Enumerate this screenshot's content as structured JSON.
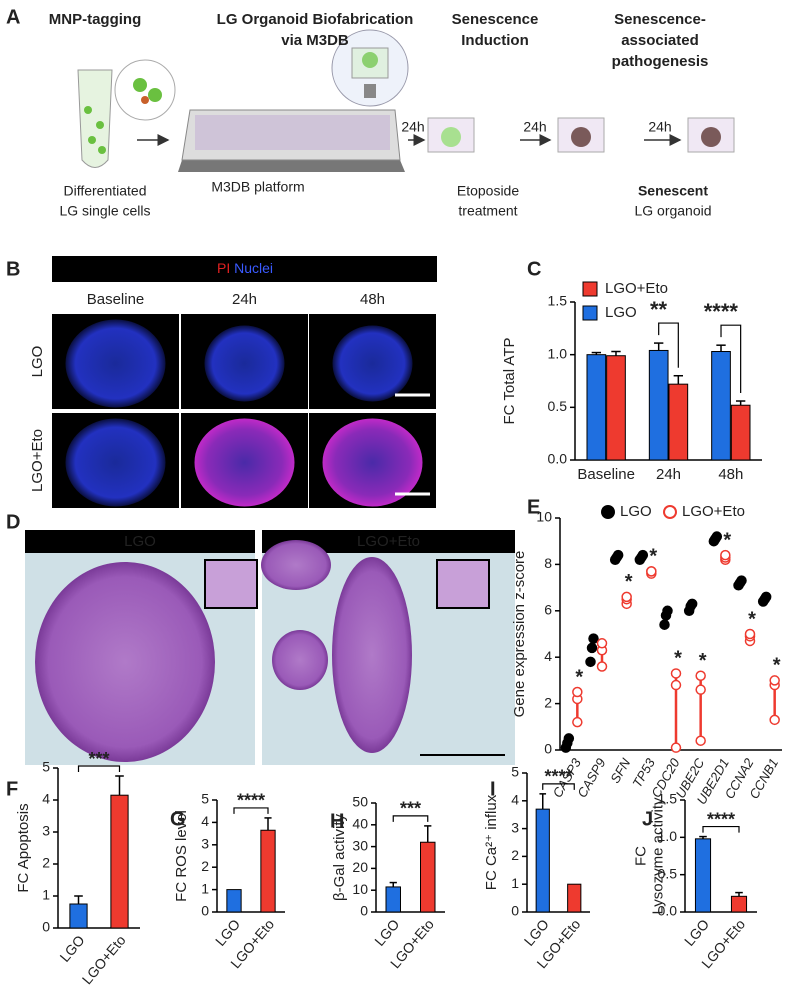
{
  "diagram": {
    "panel": "A",
    "steps": [
      {
        "title": [
          "MNP-tagging"
        ],
        "caption": [
          "Differentiated",
          "LG single cells"
        ]
      },
      {
        "title": [
          "LG Organoid Biofabrication",
          "via M3DB"
        ],
        "caption": [
          "M3DB platform"
        ]
      },
      {
        "title": [
          "Senescence",
          "Induction"
        ],
        "caption": [
          "Etoposide",
          "treatment"
        ]
      },
      {
        "title": [
          "Senescence-",
          "associated",
          "pathogenesis"
        ],
        "caption": [
          "Senescent",
          "LG organoid"
        ]
      }
    ],
    "arrow_labels": [
      "24h",
      "24h",
      "24h"
    ]
  },
  "images_b": {
    "panel": "B",
    "header": [
      "PI",
      "Nuclei"
    ],
    "columns": [
      "Baseline",
      "24h",
      "48h"
    ],
    "rows": [
      "LGO",
      "LGO+Eto"
    ]
  },
  "images_d": {
    "panel": "D",
    "columns": [
      "LGO",
      "LGO+Eto"
    ]
  },
  "chart_data": [
    {
      "type": "grouped_bar",
      "panel": "C",
      "ylabel": "FC Total ATP",
      "categories": [
        "Baseline",
        "24h",
        "48h"
      ],
      "series": [
        {
          "name": "LGO",
          "color": "#1f6fe0",
          "values": [
            1.0,
            1.04,
            1.03
          ],
          "errors": [
            0.02,
            0.07,
            0.06
          ]
        },
        {
          "name": "LGO+Eto",
          "color": "#ee3a2f",
          "values": [
            0.99,
            0.72,
            0.52
          ],
          "errors": [
            0.04,
            0.08,
            0.04
          ]
        }
      ],
      "significance": [
        null,
        "**",
        "****"
      ],
      "ylim": [
        0,
        1.5
      ],
      "yticks": [
        {
          "value": 0,
          "label": "0.0"
        },
        {
          "value": 0.5,
          "label": "0.5"
        },
        {
          "value": 1,
          "label": "1.0"
        },
        {
          "value": 1.5,
          "label": "1.5"
        }
      ]
    },
    {
      "type": "dot_range",
      "panel": "E",
      "ylabel": "Gene expression z-score",
      "categories": [
        "CASP3",
        "CASP9",
        "SFN",
        "TP53",
        "CDC20",
        "UBE2C",
        "UBE2D1",
        "CCNA2",
        "CCNB1"
      ],
      "series": [
        {
          "name": "LGO",
          "color": "#000000",
          "values": [
            [
              0.1,
              0.3,
              0.5
            ],
            [
              3.8,
              4.4,
              4.8
            ],
            [
              8.2,
              8.3,
              8.4
            ],
            [
              8.2,
              8.3,
              8.4
            ],
            [
              5.4,
              5.8,
              6.0
            ],
            [
              6.0,
              6.2,
              6.3
            ],
            [
              9.0,
              9.1,
              9.2
            ],
            [
              7.1,
              7.2,
              7.3
            ],
            [
              6.4,
              6.5,
              6.6
            ]
          ]
        },
        {
          "name": "LGO+Eto",
          "color": "#ee3a2f",
          "values": [
            [
              1.2,
              2.2,
              2.5
            ],
            [
              3.6,
              4.3,
              4.6
            ],
            [
              6.3,
              6.5,
              6.6
            ],
            [
              7.6,
              7.7,
              7.7
            ],
            [
              0.1,
              2.8,
              3.3
            ],
            [
              0.4,
              2.6,
              3.2
            ],
            [
              8.2,
              8.3,
              8.4
            ],
            [
              4.7,
              4.9,
              5.0
            ],
            [
              1.3,
              2.8,
              3.0
            ]
          ]
        }
      ],
      "significance": [
        "*",
        null,
        "*",
        "*",
        "*",
        "*",
        "*",
        "*",
        "*"
      ],
      "ylim": [
        0,
        10
      ],
      "yticks": [
        0,
        2,
        4,
        6,
        8,
        10
      ]
    },
    {
      "type": "bar",
      "panel": "F",
      "ylabel": "FC Apoptosis",
      "categories": [
        "LGO",
        "LGO+Eto"
      ],
      "values": [
        0.75,
        4.15
      ],
      "errors": [
        0.25,
        0.6
      ],
      "colors": [
        "#1f6fe0",
        "#ee3a2f"
      ],
      "significance": "***",
      "ylim": [
        0,
        5
      ],
      "yticks": [
        0,
        1,
        2,
        3,
        4,
        5
      ]
    },
    {
      "type": "bar",
      "panel": "G",
      "ylabel": "FC ROS level",
      "categories": [
        "LGO",
        "LGO+Eto"
      ],
      "values": [
        1.0,
        3.65
      ],
      "errors": [
        0,
        0.55
      ],
      "colors": [
        "#1f6fe0",
        "#ee3a2f"
      ],
      "significance": "****",
      "ylim": [
        0,
        5
      ],
      "yticks": [
        0,
        1,
        2,
        3,
        4,
        5
      ]
    },
    {
      "type": "bar",
      "panel": "H",
      "ylabel": "β-Gal activity",
      "categories": [
        "LGO",
        "LGO+Eto"
      ],
      "values": [
        11.5,
        32
      ],
      "errors": [
        2,
        7.5
      ],
      "colors": [
        "#1f6fe0",
        "#ee3a2f"
      ],
      "significance": "***",
      "ylim": [
        0,
        50
      ],
      "yticks": [
        0,
        10,
        20,
        30,
        40,
        50
      ]
    },
    {
      "type": "bar",
      "panel": "I",
      "ylabel": "FC Ca²⁺ influx",
      "categories": [
        "LGO",
        "LGO+Eto"
      ],
      "values": [
        3.7,
        1.0
      ],
      "errors": [
        0.55,
        0
      ],
      "colors": [
        "#1f6fe0",
        "#ee3a2f"
      ],
      "significance": "****",
      "ylim": [
        0,
        5
      ],
      "yticks": [
        0,
        1,
        2,
        3,
        4,
        5
      ]
    },
    {
      "type": "bar",
      "panel": "J",
      "ylabel": [
        "FC",
        "Lysozyme activity"
      ],
      "categories": [
        "LGO",
        "LGO+Eto"
      ],
      "values": [
        0.98,
        0.21
      ],
      "errors": [
        0.03,
        0.05
      ],
      "colors": [
        "#1f6fe0",
        "#ee3a2f"
      ],
      "significance": "****",
      "ylim": [
        0,
        1.5
      ],
      "yticks": [
        {
          "value": 0,
          "label": "0.0"
        },
        {
          "value": 0.5,
          "label": "0.5"
        },
        {
          "value": 1,
          "label": "1.0"
        },
        {
          "value": 1.5,
          "label": "1.5"
        }
      ]
    }
  ]
}
